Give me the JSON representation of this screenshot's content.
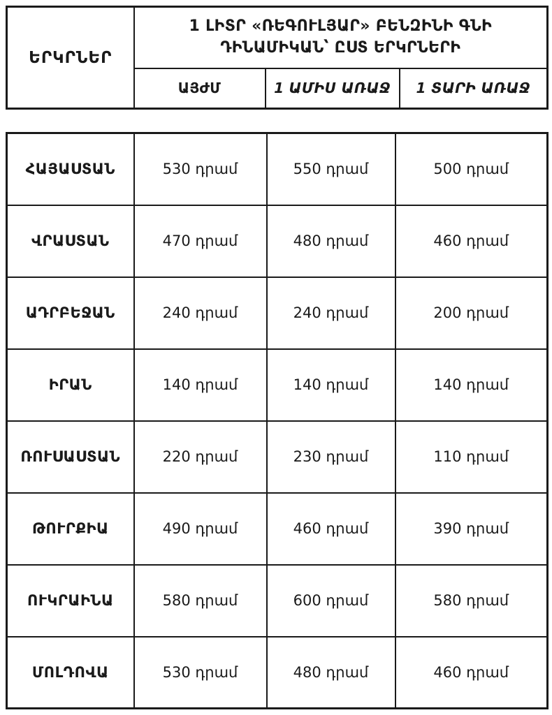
{
  "page": {
    "background_color": "#ffffff",
    "text_color": "#1a1a1a",
    "border_color": "#1a1a1a"
  },
  "header": {
    "countries_label": "ԵՐԿՐՆԵՐ",
    "title_line1": "1 ԼԻՏՐ «ՌԵԳՈՒԼՅԱՐ» ԲԵՆԶԻՆԻ ԳՆԻ",
    "title_line2": "ԴԻՆԱՄԻԿԱՆ՝ ԸՍՏ ԵՐԿՐՆԵՐԻ",
    "columns": [
      "ԱՅԺՄ",
      "1 ԱՄԻՍ ԱՌԱՋ",
      "1 ՏԱՐԻ ԱՌԱՋ"
    ]
  },
  "rows": [
    {
      "country": "ՀԱՅԱՍՏԱՆ",
      "now": "530 դրամ",
      "month_ago": "550 դրամ",
      "year_ago": "500 դրամ"
    },
    {
      "country": "ՎՐԱՍՏԱՆ",
      "now": "470 դրամ",
      "month_ago": "480 դրամ",
      "year_ago": "460 դրամ"
    },
    {
      "country": "ԱԴՐԲԵՋԱՆ",
      "now": "240 դրամ",
      "month_ago": "240 դրամ",
      "year_ago": "200 դրամ"
    },
    {
      "country": "ԻՐԱՆ",
      "now": "140 դրամ",
      "month_ago": "140 դրամ",
      "year_ago": "140 դրամ"
    },
    {
      "country": "ՌՈՒՍԱՍՏԱՆ",
      "now": "220 դրամ",
      "month_ago": "230 դրամ",
      "year_ago": "110 դրամ"
    },
    {
      "country": "ԹՈՒՐՔԻԱ",
      "now": "490 դրամ",
      "month_ago": "460 դրամ",
      "year_ago": "390 դրամ"
    },
    {
      "country": "ՈՒԿՐԱԻՆԱ",
      "now": "580 դրամ",
      "month_ago": "600 դրամ",
      "year_ago": "580 դրամ"
    },
    {
      "country": "ՄՈԼԴՈՎԱ",
      "now": "530 դրամ",
      "month_ago": "480 դրամ",
      "year_ago": "460 դրամ"
    }
  ],
  "chart_data": {
    "type": "table",
    "title": "1 ԼԻՏՐ «ՌԵԳՈՒԼՅԱՐ» ԲԵՆԶԻՆԻ ԳՆԻ ԴԻՆԱՄԻԿԱՆ՝ ԸՍՏ ԵՐԿՐՆԵՐԻ",
    "row_header_label": "ԵՐԿՐՆԵՐ",
    "columns": [
      "ԱՅԺՄ",
      "1 ԱՄԻՍ ԱՌԱՋ",
      "1 ՏԱՐԻ ԱՌԱՋ"
    ],
    "unit": "դրամ",
    "categories": [
      "ՀԱՅԱՍՏԱՆ",
      "ՎՐԱՍՏԱՆ",
      "ԱԴՐԲԵՋԱՆ",
      "ԻՐԱՆ",
      "ՌՈՒՍԱՍՏԱՆ",
      "ԹՈՒՐՔԻԱ",
      "ՈՒԿՐԱԻՆԱ",
      "ՄՈԼԴՈՎԱ"
    ],
    "series": [
      {
        "name": "ԱՅԺՄ",
        "values": [
          530,
          470,
          240,
          140,
          220,
          490,
          580,
          530
        ]
      },
      {
        "name": "1 ԱՄԻՍ ԱՌԱՋ",
        "values": [
          550,
          480,
          240,
          140,
          230,
          460,
          600,
          480
        ]
      },
      {
        "name": "1 ՏԱՐԻ ԱՌԱՋ",
        "values": [
          500,
          460,
          200,
          140,
          110,
          390,
          580,
          460
        ]
      }
    ]
  }
}
